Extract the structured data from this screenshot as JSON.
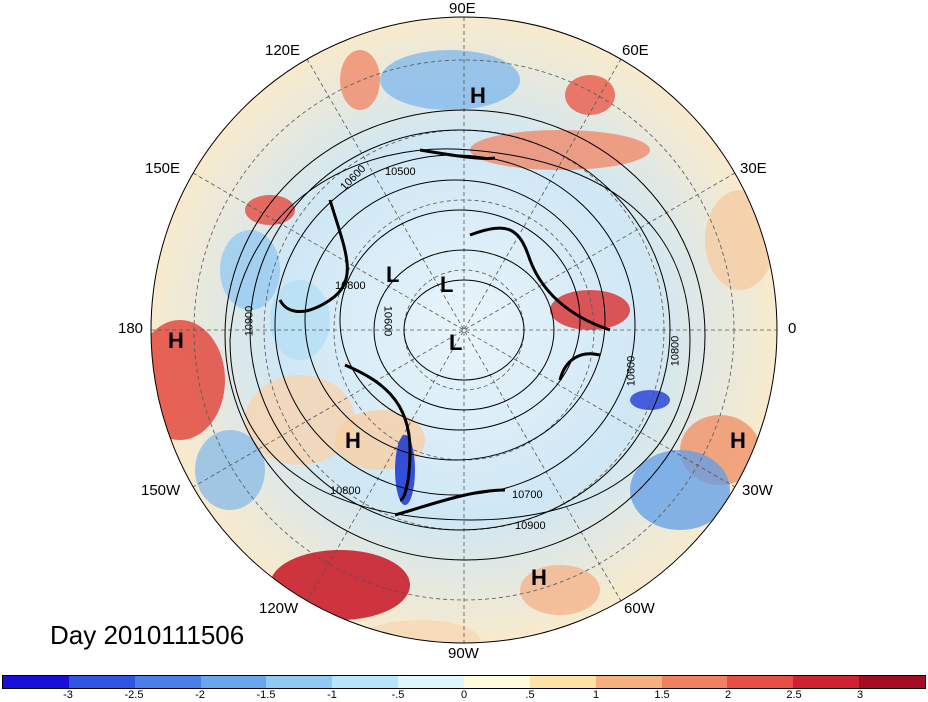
{
  "date_label": "Day 2010111506",
  "lon_labels": [
    "90E",
    "60E",
    "30E",
    "0",
    "30W",
    "60W",
    "90W",
    "120W",
    "150W",
    "180",
    "150E",
    "120E"
  ],
  "pressure_labels": [
    "H",
    "H",
    "H",
    "H",
    "H",
    "L",
    "L",
    "L"
  ],
  "contour_labels": [
    "10500",
    "10600",
    "10600",
    "10900",
    "10800",
    "10600",
    "10800",
    "10800",
    "10700",
    "10900"
  ],
  "colorbar": {
    "colors": [
      "#1a0fd9",
      "#2f55e0",
      "#4a7fe8",
      "#6aa6f0",
      "#8fcaf5",
      "#b7e6f8",
      "#e0f6fb",
      "#fdfbdc",
      "#fbe2a6",
      "#f6b07f",
      "#ef8060",
      "#e64d45",
      "#cf2230",
      "#a30c22"
    ],
    "ticks": [
      "-3",
      "-2.5",
      "-2",
      "-1.5",
      "-1",
      "-.5",
      "0",
      ".5",
      "1",
      "1.5",
      "2",
      "2.5",
      "3"
    ]
  }
}
